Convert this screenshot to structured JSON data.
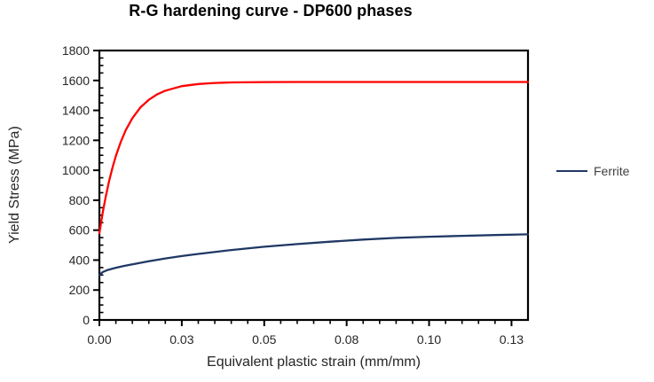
{
  "chart_data": {
    "type": "line",
    "title": "R-G hardening curve - DP600 phases",
    "xlabel": "Equivalent plastic strain (mm/mm)",
    "ylabel": "Yield Stress (MPa)",
    "xlim": [
      0,
      0.13
    ],
    "ylim": [
      0,
      1800
    ],
    "grid": false,
    "plot_border": true,
    "colors": {
      "axis": "#000000",
      "title": "#000000",
      "tick_label": "#262626",
      "axis_title": "#262626",
      "legend_text": "#404040",
      "background": "#ffffff",
      "red_series": "#FF0000",
      "ferrite_series": "#1F3864"
    },
    "x_major_ticks": [
      {
        "value": 0,
        "label": "0.00"
      },
      {
        "value": 0.025,
        "label": "0.03"
      },
      {
        "value": 0.05,
        "label": "0.05"
      },
      {
        "value": 0.075,
        "label": "0.08"
      },
      {
        "value": 0.1,
        "label": "0.10"
      },
      {
        "value": 0.125,
        "label": "0.13"
      }
    ],
    "x_minor_step": 0.005,
    "y_major_ticks": [
      {
        "value": 0,
        "label": "0"
      },
      {
        "value": 200,
        "label": "200"
      },
      {
        "value": 400,
        "label": "400"
      },
      {
        "value": 600,
        "label": "600"
      },
      {
        "value": 800,
        "label": "800"
      },
      {
        "value": 1000,
        "label": "1000"
      },
      {
        "value": 1200,
        "label": "1200"
      },
      {
        "value": 1400,
        "label": "1400"
      },
      {
        "value": 1600,
        "label": "1600"
      },
      {
        "value": 1800,
        "label": "1800"
      }
    ],
    "y_minor_step": 50,
    "legend": {
      "position": "right-middle",
      "entries": [
        {
          "label": "Ferrite",
          "color": "#1F3864"
        }
      ]
    },
    "series": [
      {
        "id": "red-curve",
        "label": "",
        "in_legend": false,
        "color": "#FF0000",
        "x": [
          0,
          0.001,
          0.002,
          0.003,
          0.004,
          0.005,
          0.0065,
          0.008,
          0.01,
          0.0125,
          0.015,
          0.0175,
          0.02,
          0.025,
          0.03,
          0.035,
          0.04,
          0.05,
          0.06,
          0.07,
          0.08,
          0.09,
          0.1,
          0.11,
          0.12,
          0.13
        ],
        "y": [
          580,
          715,
          831,
          932,
          1020,
          1096,
          1191,
          1268,
          1348,
          1421,
          1471,
          1507,
          1532,
          1562,
          1576,
          1583,
          1587,
          1589,
          1590,
          1590,
          1590,
          1590,
          1590,
          1590,
          1590,
          1590
        ]
      },
      {
        "id": "ferrite",
        "label": "Ferrite",
        "in_legend": true,
        "color": "#1F3864",
        "x": [
          0,
          0.001,
          0.0025,
          0.005,
          0.0075,
          0.01,
          0.015,
          0.02,
          0.025,
          0.03,
          0.04,
          0.05,
          0.06,
          0.07,
          0.08,
          0.09,
          0.1,
          0.11,
          0.12,
          0.13
        ],
        "y": [
          300,
          320,
          334,
          349,
          361,
          371,
          392,
          411,
          427,
          441,
          467,
          489,
          507,
          523,
          537,
          548,
          556,
          562,
          567,
          572
        ]
      }
    ]
  }
}
